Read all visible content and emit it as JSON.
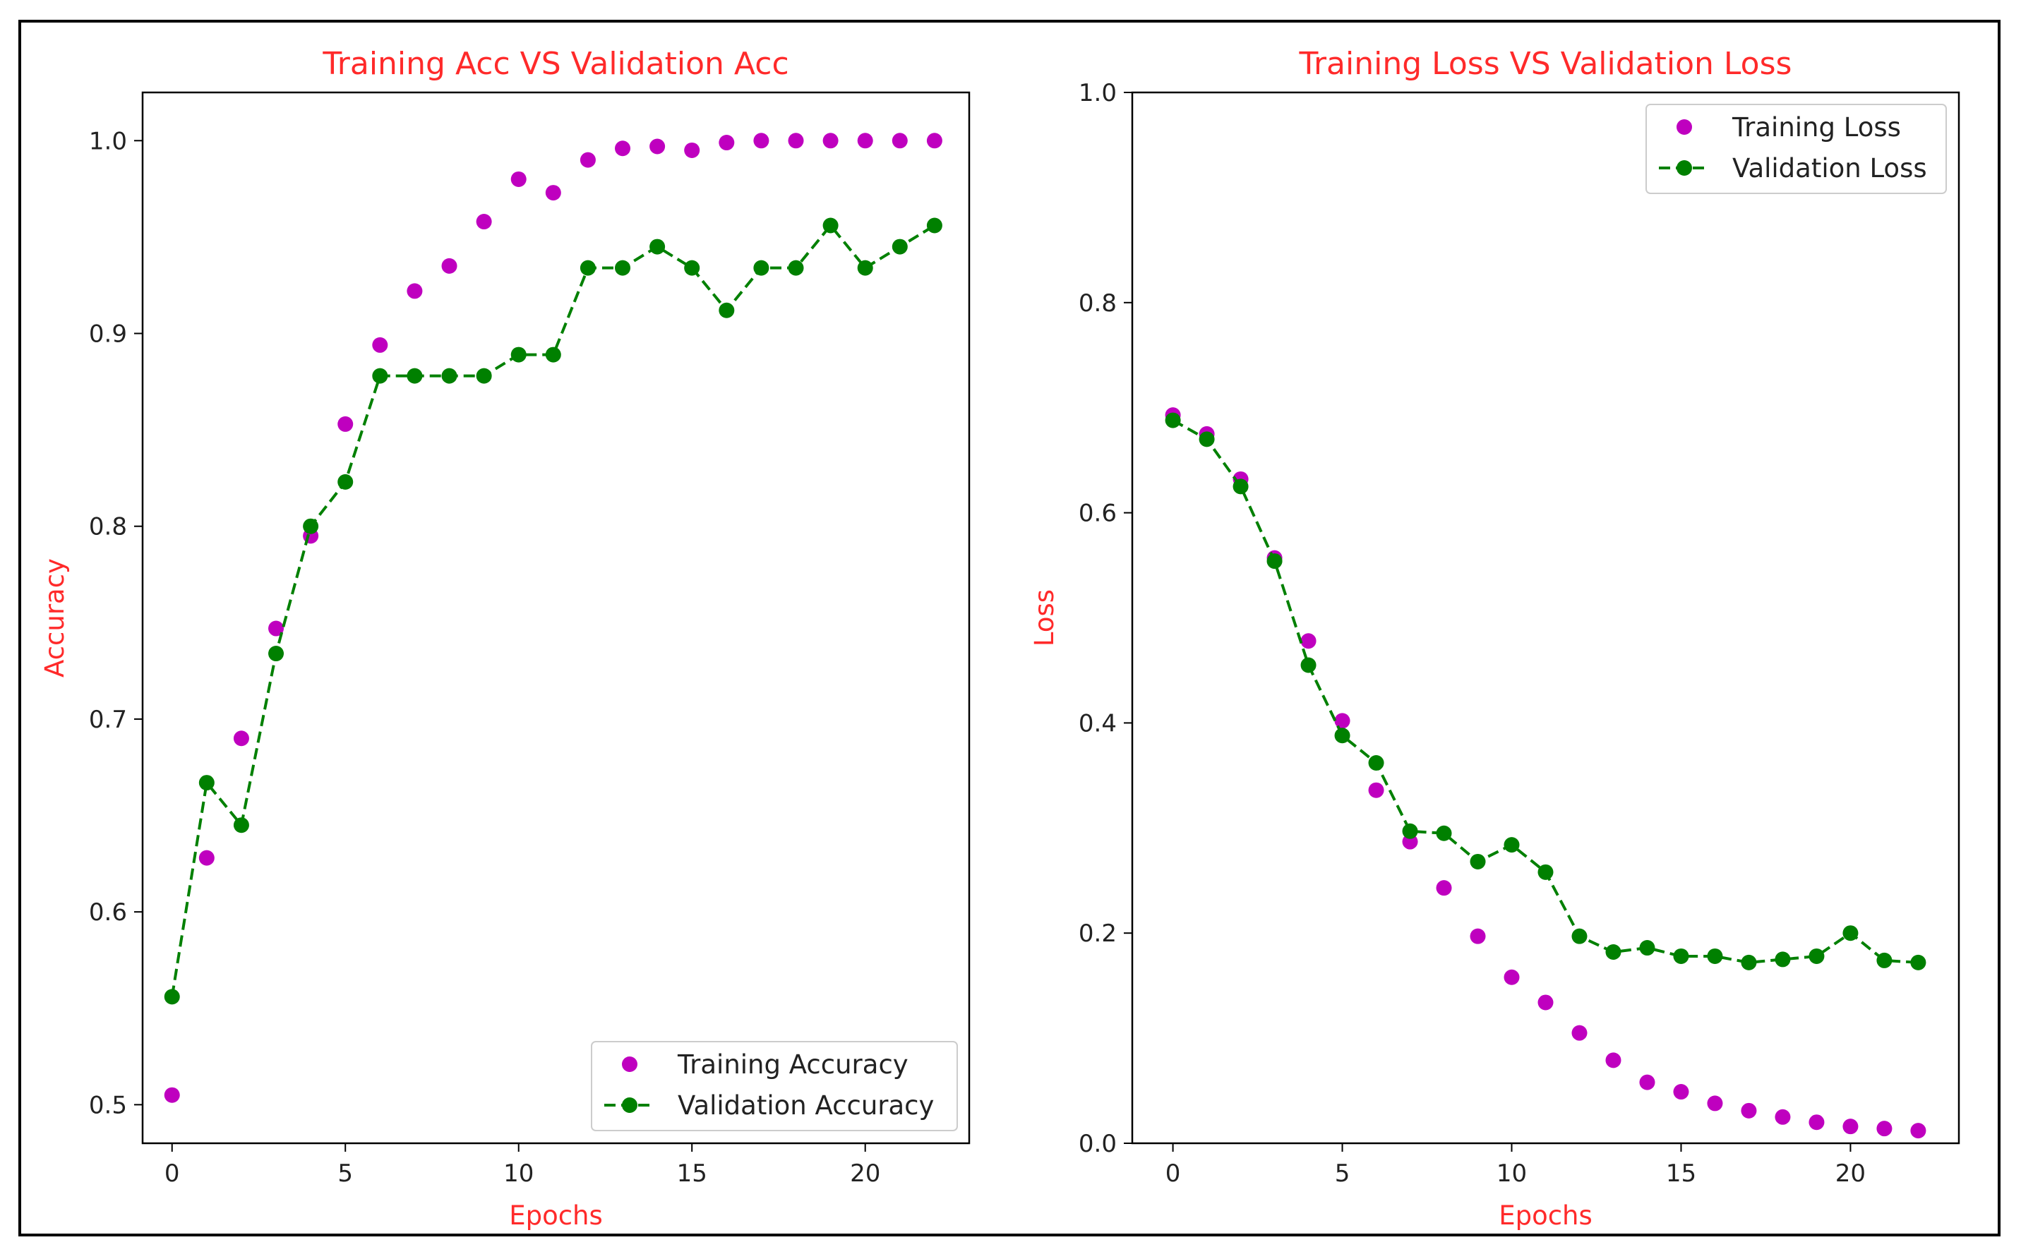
{
  "chart_data": [
    {
      "type": "line",
      "title": "Training Acc VS Validation Acc",
      "xlabel": "Epochs",
      "ylabel": "Accuracy",
      "xlim": [
        -0.85,
        23.0
      ],
      "ylim": [
        0.48,
        1.025
      ],
      "xticks": [
        0,
        5,
        10,
        15,
        20
      ],
      "yticks": [
        0.5,
        0.6,
        0.7,
        0.8,
        0.9,
        1.0
      ],
      "ytick_labels": [
        "0.5",
        "0.6",
        "0.7",
        "0.8",
        "0.9",
        "1.0"
      ],
      "legend_position": "lower-right",
      "x": [
        0,
        1,
        2,
        3,
        4,
        5,
        6,
        7,
        8,
        9,
        10,
        11,
        12,
        13,
        14,
        15,
        16,
        17,
        18,
        19,
        20,
        21,
        22
      ],
      "series": [
        {
          "name": "Training Accuracy",
          "style": "markers",
          "color": "#bf00bf",
          "values": [
            0.505,
            0.628,
            0.69,
            0.747,
            0.795,
            0.853,
            0.894,
            0.922,
            0.935,
            0.958,
            0.98,
            0.973,
            0.99,
            0.996,
            0.997,
            0.995,
            0.999,
            1.0,
            1.0,
            1.0,
            1.0,
            1.0,
            1.0
          ]
        },
        {
          "name": "Validation Accuracy",
          "style": "dashed-line-markers",
          "color": "#008000",
          "values": [
            0.556,
            0.667,
            0.645,
            0.734,
            0.8,
            0.823,
            0.878,
            0.878,
            0.878,
            0.878,
            0.889,
            0.889,
            0.934,
            0.934,
            0.945,
            0.934,
            0.912,
            0.934,
            0.934,
            0.956,
            0.934,
            0.945,
            0.956
          ]
        }
      ]
    },
    {
      "type": "line",
      "title": "Training Loss VS Validation Loss",
      "xlabel": "Epochs",
      "ylabel": "Loss",
      "xlim": [
        -1.2,
        23.2
      ],
      "ylim": [
        0.0,
        1.0
      ],
      "xticks": [
        0,
        5,
        10,
        15,
        20
      ],
      "yticks": [
        0.0,
        0.2,
        0.4,
        0.6,
        0.8,
        1.0
      ],
      "ytick_labels": [
        "0.0",
        "0.2",
        "0.4",
        "0.6",
        "0.8",
        "1.0"
      ],
      "legend_position": "upper-right",
      "x": [
        0,
        1,
        2,
        3,
        4,
        5,
        6,
        7,
        8,
        9,
        10,
        11,
        12,
        13,
        14,
        15,
        16,
        17,
        18,
        19,
        20,
        21,
        22
      ],
      "series": [
        {
          "name": "Training Loss",
          "style": "markers",
          "color": "#bf00bf",
          "values": [
            0.693,
            0.675,
            0.632,
            0.557,
            0.478,
            0.402,
            0.336,
            0.287,
            0.243,
            0.197,
            0.158,
            0.134,
            0.105,
            0.079,
            0.058,
            0.049,
            0.038,
            0.031,
            0.025,
            0.02,
            0.016,
            0.014,
            0.012
          ]
        },
        {
          "name": "Validation Loss",
          "style": "dashed-line-markers",
          "color": "#008000",
          "values": [
            0.688,
            0.67,
            0.625,
            0.554,
            0.455,
            0.388,
            0.362,
            0.297,
            0.295,
            0.268,
            0.284,
            0.258,
            0.197,
            0.182,
            0.186,
            0.178,
            0.178,
            0.172,
            0.175,
            0.178,
            0.2,
            0.174,
            0.172
          ]
        }
      ]
    }
  ]
}
